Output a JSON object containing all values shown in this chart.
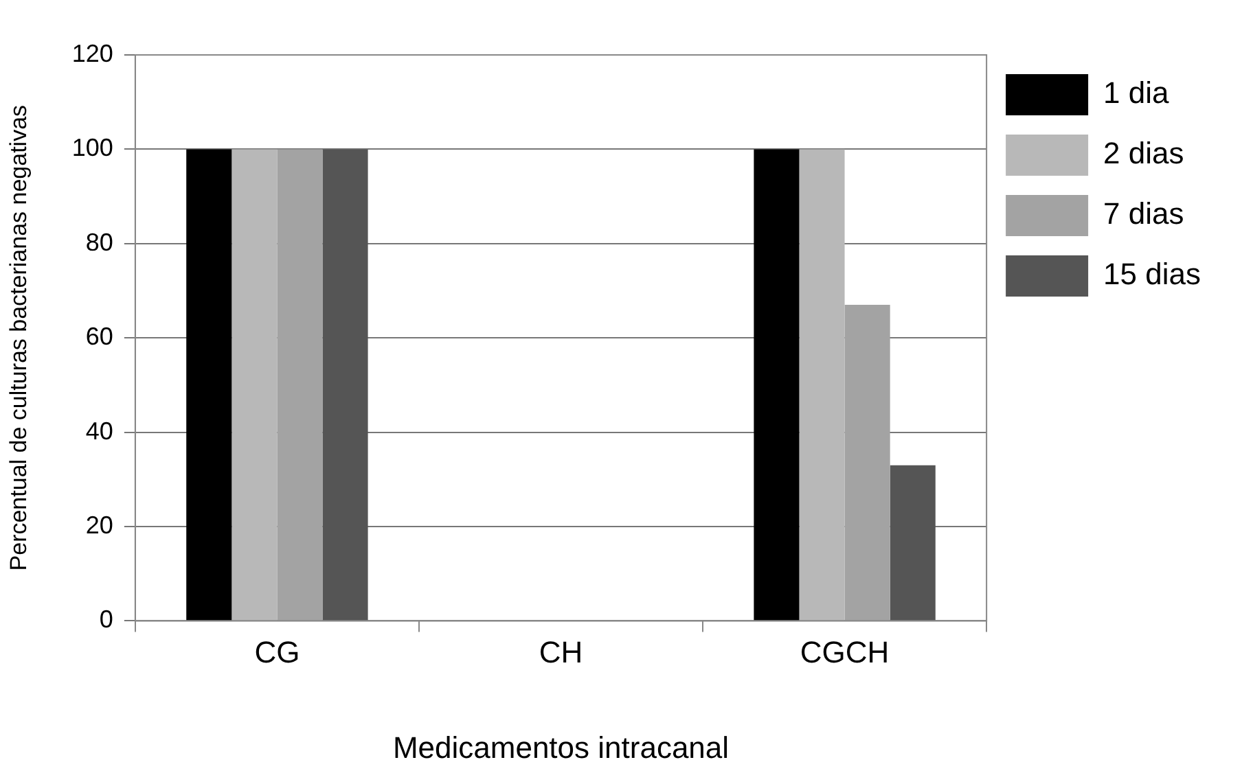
{
  "chart_data": {
    "type": "bar",
    "xlabel": "Medicamentos intracanal",
    "ylabel": "Percentual de culturas bacterianas negativas",
    "categories": [
      "CG",
      "CH",
      "CGCH"
    ],
    "series": [
      {
        "name": "1 dia",
        "color": "#000000",
        "values": [
          100,
          0,
          100
        ]
      },
      {
        "name": "2 dias",
        "color": "#b8b8b8",
        "values": [
          100,
          0,
          100
        ]
      },
      {
        "name": "7 dias",
        "color": "#a3a3a3",
        "values": [
          100,
          0,
          67
        ]
      },
      {
        "name": "15 dias",
        "color": "#555555",
        "values": [
          100,
          0,
          33
        ]
      }
    ],
    "ylim": [
      0,
      120
    ],
    "yticks": [
      0,
      20,
      40,
      60,
      80,
      100,
      120
    ],
    "grid": "y",
    "legend": "right"
  }
}
